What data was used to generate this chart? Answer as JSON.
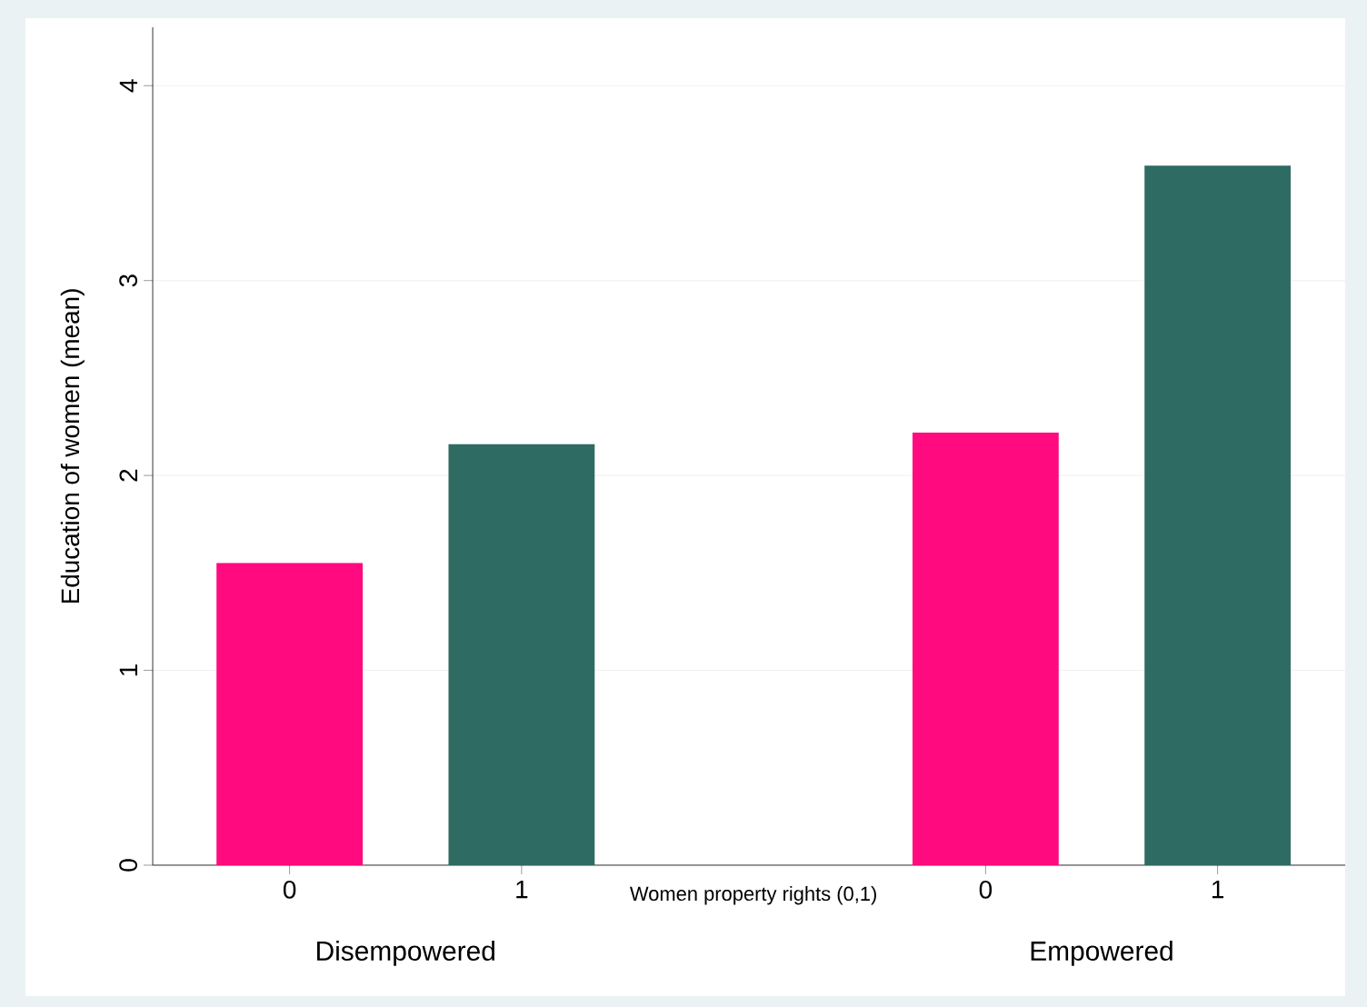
{
  "chart_data": {
    "type": "bar",
    "categories": [
      "0",
      "1",
      null,
      "0",
      "1"
    ],
    "values": [
      1.55,
      2.16,
      null,
      2.22,
      3.59
    ],
    "colors": [
      "#ff0a7f",
      "#2e6b63",
      "#2e6b63",
      "#ff0a7f",
      "#2e6b63"
    ],
    "xlabel": "Women property rights (0,1)",
    "ylabel": "Education of women (mean)",
    "annotations": [
      "Disempowered",
      "Empowered"
    ],
    "ylim": [
      0,
      4.3
    ],
    "yticks": [
      0,
      1,
      2,
      3,
      4
    ],
    "grid": "y"
  }
}
